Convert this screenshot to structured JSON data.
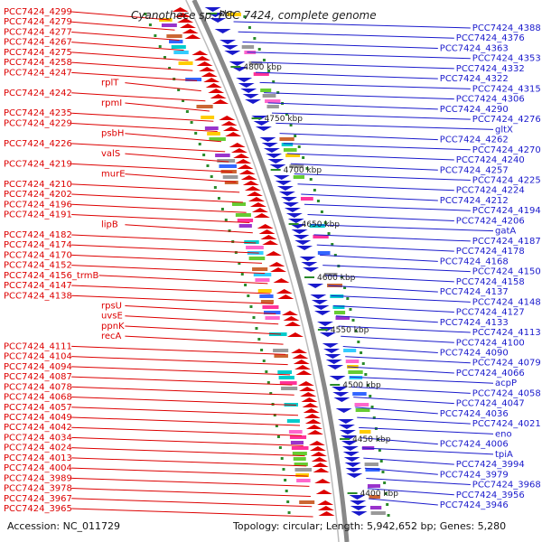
{
  "title": "Cyanothece sp. PCC 7424, complete genome",
  "footer": {
    "accession": "Accession: NC_011729",
    "topology": "Topology: circular; Length: 5,942,652 bp; Genes: 5,280"
  },
  "ticks": [
    "kbp",
    "4800 kbp",
    "4750 kbp",
    "4700 kbp",
    "4650 kbp",
    "4600 kbp",
    "4550 kbp",
    "4500 kbp",
    "4450 kbp",
    "4400 kbp"
  ],
  "colors": {
    "forward": "#dd0000",
    "reverse": "#1a1acc",
    "backbone": "#888888",
    "tick": "#2a8a2a"
  },
  "left_labels": [
    "PCC7424_4299",
    "PCC7424_4279",
    "PCC7424_4277",
    "PCC7424_4267",
    "PCC7424_4275",
    "PCC7424_4258",
    "PCC7424_4247",
    "rplT",
    "PCC7424_4242",
    "rpmI",
    "PCC7424_4235",
    "PCC7424_4229",
    "psbH",
    "PCC7424_4226",
    "valS",
    "PCC7424_4219",
    "murE",
    "PCC7424_4210",
    "PCC7424_4202",
    "PCC7424_4196",
    "PCC7424_4191",
    "lipB",
    "PCC7424_4182",
    "PCC7424_4174",
    "PCC7424_4170",
    "PCC7424_4152",
    "PCC7424_4156_trmB",
    "PCC7424_4147",
    "PCC7424_4138",
    "rpsU",
    "uvsE",
    "ppnK",
    "recA",
    "PCC7424_4111",
    "PCC7424_4104",
    "PCC7424_4094",
    "PCC7424_4087",
    "PCC7424_4078",
    "PCC7424_4068",
    "PCC7424_4057",
    "PCC7424_4049",
    "PCC7424_4042",
    "PCC7424_4034",
    "PCC7424_4024",
    "PCC7424_4013",
    "PCC7424_4004",
    "PCC7424_3989",
    "PCC7424_3978",
    "PCC7424_3967",
    "PCC7424_3965"
  ],
  "right_labels": [
    "PCC7424_4388",
    "PCC7424_4376",
    "PCC7424_4363",
    "PCC7424_4353",
    "PCC7424_4332",
    "PCC7424_4322",
    "PCC7424_4315",
    "PCC7424_4306",
    "PCC7424_4290",
    "PCC7424_4276",
    "gltX",
    "PCC7424_4262",
    "PCC7424_4270",
    "PCC7424_4240",
    "PCC7424_4257",
    "PCC7424_4225",
    "PCC7424_4224",
    "PCC7424_4212",
    "PCC7424_4194",
    "PCC7424_4206",
    "gatA",
    "PCC7424_4187",
    "PCC7424_4178",
    "PCC7424_4168",
    "PCC7424_4150",
    "PCC7424_4158",
    "PCC7424_4137",
    "PCC7424_4148",
    "PCC7424_4127",
    "PCC7424_4133",
    "PCC7424_4113",
    "PCC7424_4100",
    "PCC7424_4090",
    "PCC7424_4079",
    "PCC7424_4066",
    "acpP",
    "PCC7424_4058",
    "PCC7424_4047",
    "PCC7424_4036",
    "PCC7424_4021",
    "eno",
    "PCC7424_4006",
    "tpiA",
    "PCC7424_3994",
    "PCC7424_3979",
    "PCC7424_3968",
    "PCC7424_3956",
    "PCC7424_3946"
  ]
}
